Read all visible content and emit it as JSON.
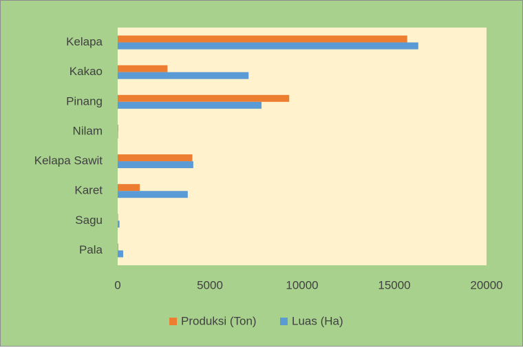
{
  "chart_data": {
    "type": "hbar",
    "categories": [
      "Kelapa",
      "Kakao",
      "Pinang",
      "Nilam",
      "Kelapa Sawit",
      "Karet",
      "Sagu",
      "Pala"
    ],
    "series": [
      {
        "name": "Produksi (Ton)",
        "color": "#ed7d31",
        "values": [
          15700,
          2700,
          9300,
          30,
          4050,
          1200,
          20,
          30
        ]
      },
      {
        "name": "Luas (Ha)",
        "color": "#5b9bd5",
        "values": [
          16300,
          7100,
          7800,
          20,
          4100,
          3800,
          100,
          300
        ]
      }
    ],
    "xlim": [
      0,
      20000
    ],
    "xticks": [
      0,
      5000,
      10000,
      15000,
      20000
    ],
    "grid": false,
    "legend": "bottom"
  }
}
